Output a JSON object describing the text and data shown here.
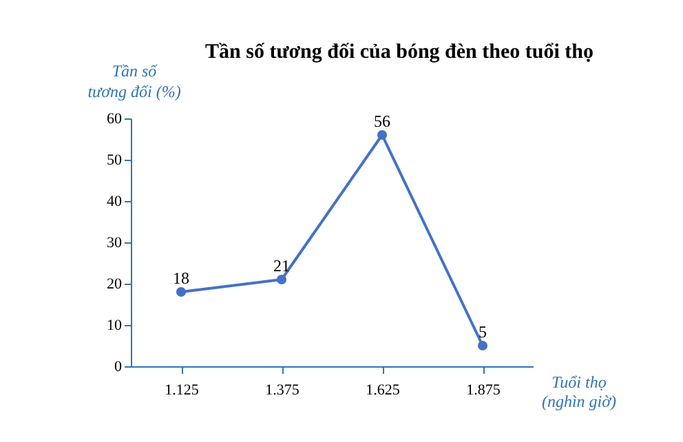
{
  "chart_data": {
    "type": "line",
    "title": "Tần số tương đối của bóng đèn theo tuổi thọ",
    "xlabel": "Tuổi thọ\n(nghìn giờ)",
    "ylabel": "Tần số\ntương đối (%)",
    "categories": [
      "1.125",
      "1.375",
      "1.625",
      "1.875"
    ],
    "values": [
      18,
      21,
      56,
      5
    ],
    "color": "#4472c4",
    "ylim": [
      0,
      60
    ],
    "yticks": [
      0,
      10,
      20,
      30,
      40,
      50,
      60
    ],
    "grid": false,
    "marker": "circle",
    "data_labels": true,
    "line_style": "solid"
  }
}
